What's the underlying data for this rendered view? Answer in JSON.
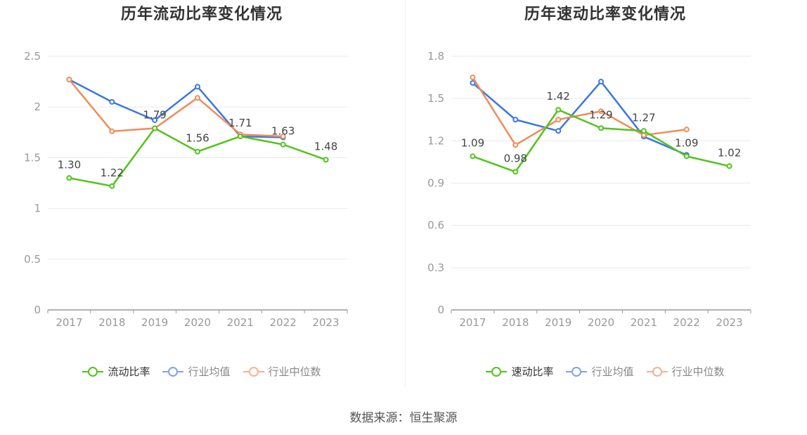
{
  "footer": {
    "source": "数据来源：恒生聚源"
  },
  "colors": {
    "company": "#52c41a",
    "average": "#3a78e0",
    "median": "#f08c5a",
    "grid": "#e6e9f2",
    "axis": "#999999"
  },
  "chart_data": [
    {
      "type": "line",
      "title": "历年流动比率变化情况",
      "categories": [
        "2017",
        "2018",
        "2019",
        "2020",
        "2021",
        "2022",
        "2023"
      ],
      "ylim": [
        0,
        2.5
      ],
      "yticks": [
        "0",
        "0.5",
        "1",
        "1.5",
        "2",
        "2.5"
      ],
      "grid": true,
      "legend_position": "bottom",
      "series": [
        {
          "name": "流动比率",
          "role": "company",
          "values": [
            1.3,
            1.22,
            1.79,
            1.56,
            1.71,
            1.63,
            1.48
          ],
          "labels": [
            "1.30",
            "1.22",
            "1.79",
            "1.56",
            "1.71",
            "1.63",
            "1.48"
          ]
        },
        {
          "name": "行业均值",
          "role": "average",
          "values": [
            2.27,
            2.05,
            1.87,
            2.2,
            1.71,
            1.7,
            null
          ]
        },
        {
          "name": "行业中位数",
          "role": "median",
          "values": [
            2.27,
            1.76,
            1.79,
            2.09,
            1.73,
            1.71,
            null
          ]
        }
      ]
    },
    {
      "type": "line",
      "title": "历年速动比率变化情况",
      "categories": [
        "2017",
        "2018",
        "2019",
        "2020",
        "2021",
        "2022",
        "2023"
      ],
      "ylim": [
        0,
        1.8
      ],
      "yticks": [
        "0",
        "0.3",
        "0.6",
        "0.9",
        "1.2",
        "1.5",
        "1.8"
      ],
      "grid": true,
      "legend_position": "bottom",
      "series": [
        {
          "name": "速动比率",
          "role": "company",
          "values": [
            1.09,
            0.98,
            1.42,
            1.29,
            1.27,
            1.09,
            1.02
          ],
          "labels": [
            "1.09",
            "0.98",
            "1.42",
            "1.29",
            "1.27",
            "1.09",
            "1.02"
          ]
        },
        {
          "name": "行业均值",
          "role": "average",
          "values": [
            1.61,
            1.35,
            1.27,
            1.62,
            1.23,
            1.1,
            null
          ]
        },
        {
          "name": "行业中位数",
          "role": "median",
          "values": [
            1.65,
            1.17,
            1.35,
            1.41,
            1.24,
            1.28,
            null
          ]
        }
      ]
    }
  ]
}
